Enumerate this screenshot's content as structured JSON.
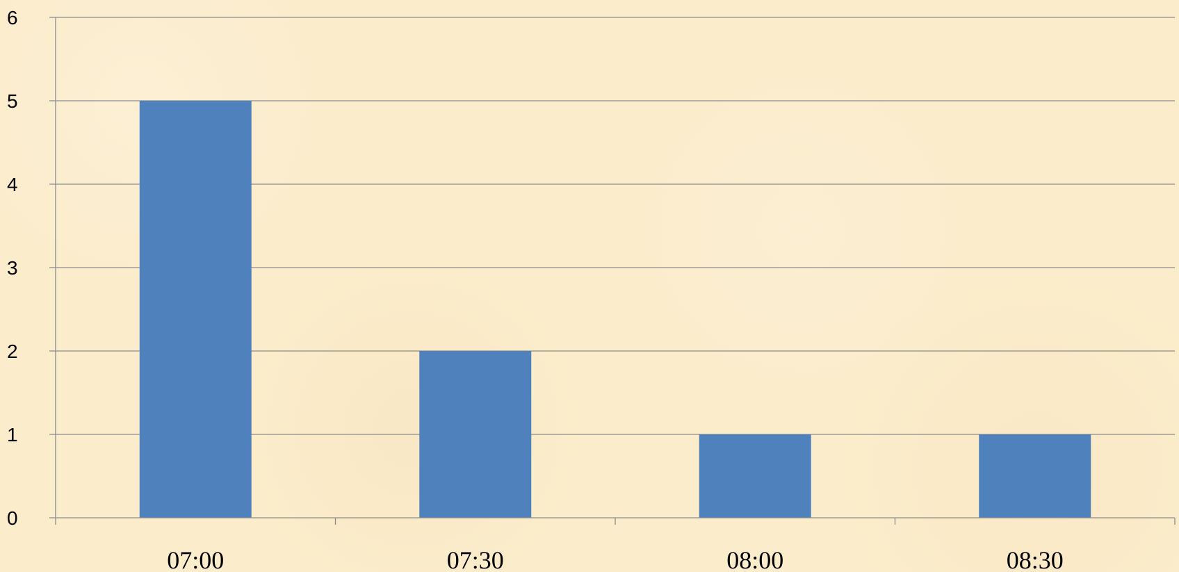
{
  "chart_data": {
    "type": "bar",
    "title": "",
    "xlabel": "",
    "ylabel": "",
    "categories": [
      "07:00",
      "07:30",
      "08:00",
      "08:30"
    ],
    "values": [
      5,
      2,
      1,
      1
    ],
    "ylim": [
      0,
      6
    ],
    "y_ticks": [
      "0",
      "1",
      "2",
      "3",
      "4",
      "5",
      "6"
    ],
    "grid": true,
    "legend": "none",
    "bar_color": "#4f81bd",
    "gridline_color": "#8c8c8c",
    "background_color": "#fbeccb"
  }
}
